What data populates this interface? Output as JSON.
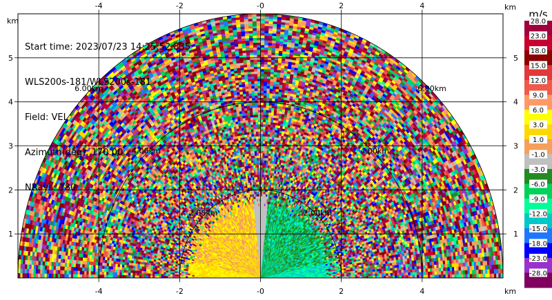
{
  "info": {
    "start_time": "Start time: 2023/07/23 14:25:52.835",
    "instrument": "WLS200s-181/WLS200s-181",
    "field": "Field: VEL",
    "azimuth": "Azimuth(deg): 170.00",
    "nrays": "NRays: 180"
  },
  "chart_data": {
    "type": "heatmap",
    "subtype": "radar-rhi-half-circle",
    "x_unit": "km",
    "y_unit": "km",
    "xlim": [
      -6,
      6
    ],
    "ylim": [
      0,
      6
    ],
    "x_ticks": [
      -4,
      -2,
      0,
      2,
      4
    ],
    "x_tick_labels": [
      "-4",
      "-2",
      "-0",
      "2",
      "4"
    ],
    "y_ticks": [
      1,
      2,
      3,
      4,
      5
    ],
    "y_tick_labels": [
      "1",
      "2",
      "3",
      "4",
      "5"
    ],
    "max_range_km": 6,
    "range_rings_km": [
      2,
      4,
      6
    ],
    "range_ring_labels": [
      "2.00km",
      "4.00km",
      "6.00km"
    ],
    "grid": true,
    "colorbar": {
      "title": "m/s",
      "position": "right",
      "labels": [
        "28.0",
        "23.0",
        "18.0",
        "15.0",
        "12.0",
        "9.0",
        "6.0",
        "3.0",
        "1.0",
        "-1.0",
        "-3.0",
        "-6.0",
        "-9.0",
        "-12.0",
        "-15.0",
        "-18.0",
        "-23.0",
        "-28.0"
      ],
      "colors": [
        "#a0003c",
        "#c8002d",
        "#8b0000",
        "#e2383a",
        "#f05a4b",
        "#ff9a66",
        "#ffff00",
        "#ffd700",
        "#f4a05a",
        "#c0c0c0",
        "#228b22",
        "#00d25a",
        "#00ff9a",
        "#00c8c8",
        "#1e78ff",
        "#0000ff",
        "#9932cc",
        "#800060"
      ]
    },
    "regions": [
      {
        "description": "near-field left",
        "range_km": [
          0,
          2
        ],
        "angle_deg": [
          90,
          180
        ],
        "dominant_velocity": 5
      },
      {
        "description": "near-field right",
        "range_km": [
          0,
          2
        ],
        "angle_deg": [
          0,
          90
        ],
        "dominant_velocity": -5
      },
      {
        "description": "far-field noise",
        "range_km": [
          2,
          6
        ],
        "angle_deg": [
          0,
          180
        ],
        "dominant_velocity": null
      }
    ]
  }
}
